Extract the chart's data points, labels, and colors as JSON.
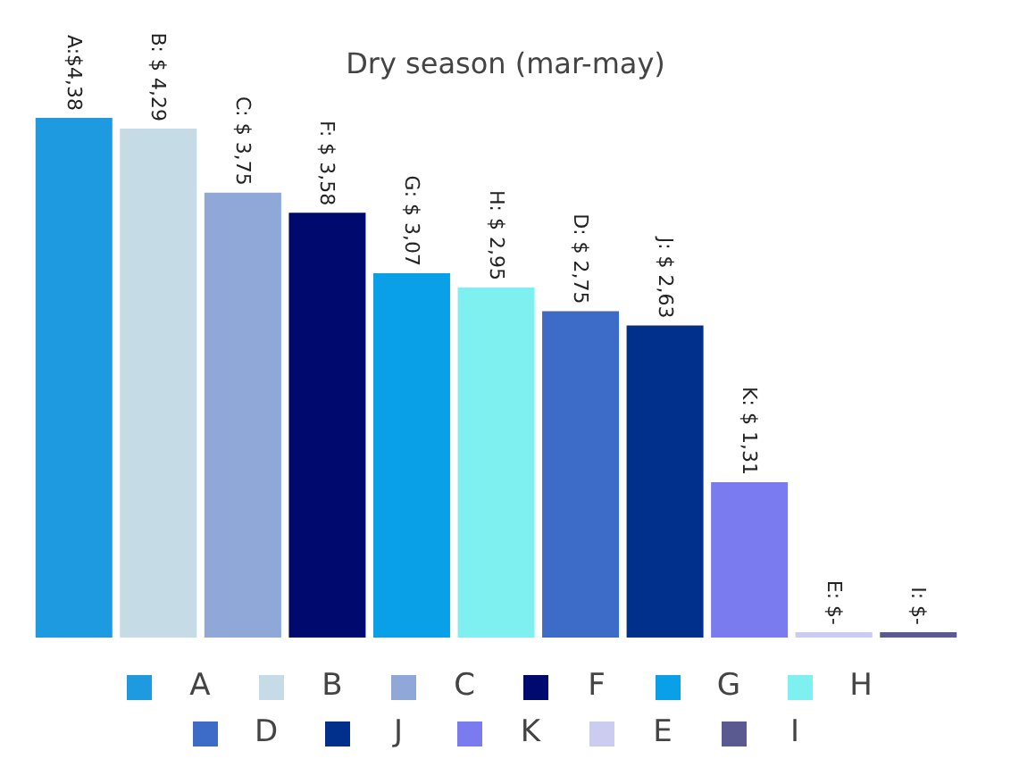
{
  "chart_data": {
    "type": "bar",
    "title": "Dry season (mar-may)",
    "stacked": true,
    "categories": [
      null,
      null,
      null,
      null,
      null,
      null,
      null,
      null,
      null,
      null,
      null
    ],
    "series": [
      {
        "name": "A",
        "color": "#1e9be0",
        "values": [
          4.38,
          null,
          null,
          null,
          null,
          null,
          null,
          null,
          null,
          null,
          null
        ],
        "value_labels": [
          "A:$4,38",
          null,
          null,
          null,
          null,
          null,
          null,
          null,
          null,
          null,
          null
        ]
      },
      {
        "name": "B",
        "color": "#c5dbe6",
        "values": [
          null,
          4.29,
          null,
          null,
          null,
          null,
          null,
          null,
          null,
          null,
          null
        ],
        "value_labels": [
          null,
          "B: $ 4,29",
          null,
          null,
          null,
          null,
          null,
          null,
          null,
          null,
          null
        ]
      },
      {
        "name": "C",
        "color": "#8fa8d8",
        "values": [
          null,
          null,
          3.75,
          null,
          null,
          null,
          null,
          null,
          null,
          null,
          null
        ],
        "value_labels": [
          null,
          null,
          "C: $ 3,75",
          null,
          null,
          null,
          null,
          null,
          null,
          null,
          null
        ]
      },
      {
        "name": "F",
        "color": "#000a6e",
        "values": [
          null,
          null,
          null,
          3.58,
          null,
          null,
          null,
          null,
          null,
          null,
          null
        ],
        "value_labels": [
          null,
          null,
          null,
          "F: $ 3,58",
          null,
          null,
          null,
          null,
          null,
          null,
          null
        ]
      },
      {
        "name": "G",
        "color": "#0aa0e8",
        "values": [
          null,
          null,
          null,
          null,
          3.07,
          null,
          null,
          null,
          null,
          null,
          null
        ],
        "value_labels": [
          null,
          null,
          null,
          null,
          "G: $ 3,07",
          null,
          null,
          null,
          null,
          null,
          null
        ]
      },
      {
        "name": "H",
        "color": "#7ff0f0",
        "values": [
          null,
          null,
          null,
          null,
          null,
          2.95,
          null,
          null,
          null,
          null,
          null
        ],
        "value_labels": [
          null,
          null,
          null,
          null,
          null,
          "H: $ 2,95",
          null,
          null,
          null,
          null,
          null
        ]
      },
      {
        "name": "D",
        "color": "#3c6cc8",
        "values": [
          null,
          null,
          null,
          null,
          null,
          null,
          2.75,
          null,
          null,
          null,
          null
        ],
        "value_labels": [
          null,
          null,
          null,
          null,
          null,
          null,
          "D: $ 2,75",
          null,
          null,
          null,
          null
        ]
      },
      {
        "name": "J",
        "color": "#00308c",
        "values": [
          null,
          null,
          null,
          null,
          null,
          null,
          null,
          2.63,
          null,
          null,
          null
        ],
        "value_labels": [
          null,
          null,
          null,
          null,
          null,
          null,
          null,
          "J: $ 2,63",
          null,
          null,
          null
        ]
      },
      {
        "name": "K",
        "color": "#7b7bf0",
        "values": [
          null,
          null,
          null,
          null,
          null,
          null,
          null,
          null,
          1.31,
          null,
          null
        ],
        "value_labels": [
          null,
          null,
          null,
          null,
          null,
          null,
          null,
          null,
          "K: $ 1,31",
          null,
          null
        ]
      },
      {
        "name": "E",
        "color": "#ccccf0",
        "values": [
          null,
          null,
          null,
          null,
          null,
          null,
          null,
          null,
          null,
          0,
          null
        ],
        "value_labels": [
          null,
          null,
          null,
          null,
          null,
          null,
          null,
          null,
          null,
          "E: $-",
          null
        ]
      },
      {
        "name": "I",
        "color": "#5a5a90",
        "values": [
          null,
          null,
          null,
          null,
          null,
          null,
          null,
          null,
          null,
          null,
          0
        ],
        "value_labels": [
          null,
          null,
          null,
          null,
          null,
          null,
          null,
          null,
          null,
          null,
          "I: $-"
        ]
      }
    ],
    "legend": "bottom",
    "tick_labels": false
  }
}
